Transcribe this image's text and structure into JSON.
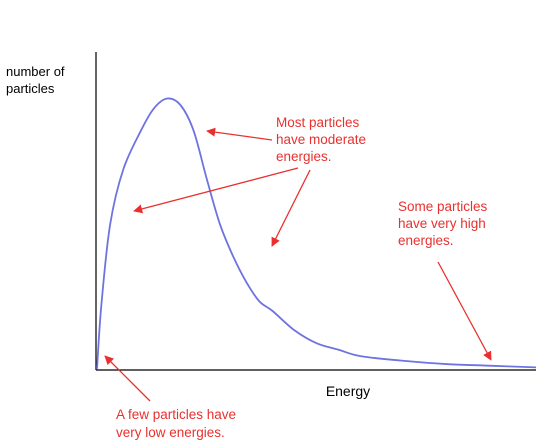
{
  "chart_data": {
    "type": "line",
    "title": "",
    "xlabel": "Energy",
    "ylabel": "number of particles",
    "ylabel_lines": [
      "number of",
      "particles"
    ],
    "axis_ticks": false,
    "grid": false,
    "xlim": [
      0,
      100
    ],
    "ylim": [
      0,
      100
    ],
    "series": [
      {
        "x": [
          0,
          1,
          3,
          6,
          10,
          13,
          16,
          19,
          22,
          25,
          28,
          31,
          34,
          37,
          40,
          45,
          50,
          55,
          60,
          70,
          80,
          90,
          100
        ],
        "y": [
          0,
          20,
          45,
          62,
          74,
          81,
          84,
          82,
          74,
          59,
          45,
          35,
          27,
          21,
          18,
          12,
          8,
          6,
          4,
          2.5,
          1.5,
          1,
          0.5
        ]
      }
    ],
    "colors": {
      "curve": "#6f73e0",
      "annotation": "#e8312f",
      "axis": "#000000"
    },
    "annotations": [
      {
        "id": "most",
        "lines": [
          "Most particles",
          "have moderate",
          "energies."
        ]
      },
      {
        "id": "high",
        "lines": [
          "Some particles",
          "have very high",
          "energies."
        ]
      },
      {
        "id": "low",
        "lines": [
          "A few particles have",
          "very low energies."
        ]
      }
    ]
  }
}
